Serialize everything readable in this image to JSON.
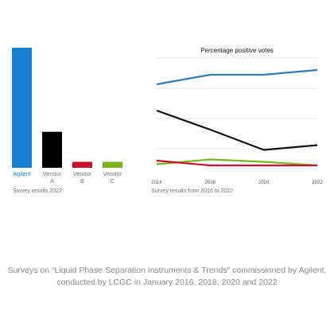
{
  "chart_data": [
    {
      "type": "bar",
      "categories": [
        "Agilent",
        "Vendor A",
        "Vendor B",
        "Vendor C"
      ],
      "category_label_lines": [
        [
          "Agilent"
        ],
        [
          "Vendor",
          "A"
        ],
        [
          "Vendor",
          "B"
        ],
        [
          "Vendor",
          "C"
        ]
      ],
      "values": [
        100,
        30,
        5,
        5
      ],
      "colors": [
        "#1a7fd0",
        "#000000",
        "#c8102e",
        "#7ab51d"
      ],
      "highlight_label_color": "#1a7fd0",
      "caption": "Survey results 2022",
      "ylim": [
        0,
        100
      ]
    },
    {
      "type": "line",
      "title": "Percentage positive votes",
      "x": [
        "2016",
        "2018",
        "2020",
        "2022"
      ],
      "series": [
        {
          "values": [
            78,
            86,
            86,
            90
          ],
          "color": "#2e7db5"
        },
        {
          "values": [
            56,
            40,
            23,
            27
          ],
          "color": "#111111"
        },
        {
          "values": [
            11,
            15,
            13,
            10
          ],
          "color": "#7ab51d"
        },
        {
          "values": [
            14,
            10,
            10,
            10
          ],
          "color": "#c8102e"
        }
      ],
      "ylim": [
        0,
        100
      ],
      "grid": true,
      "caption": "Survey results from 2016 to 2022"
    }
  ],
  "footnote": {
    "line1": "Surveys on “Liquid Phase Separation Instruments & Trends” commissioned by Agilent,",
    "line2": "conducted by LCGC in January 2016, 2018, 2020 and 2022"
  }
}
